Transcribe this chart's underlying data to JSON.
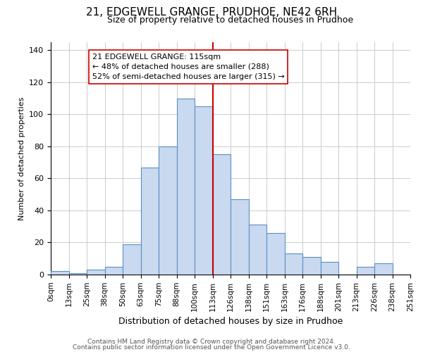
{
  "title": "21, EDGEWELL GRANGE, PRUDHOE, NE42 6RH",
  "subtitle": "Size of property relative to detached houses in Prudhoe",
  "xlabel": "Distribution of detached houses by size in Prudhoe",
  "ylabel": "Number of detached properties",
  "bin_labels": [
    "0sqm",
    "13sqm",
    "25sqm",
    "38sqm",
    "50sqm",
    "63sqm",
    "75sqm",
    "88sqm",
    "100sqm",
    "113sqm",
    "126sqm",
    "138sqm",
    "151sqm",
    "163sqm",
    "176sqm",
    "188sqm",
    "201sqm",
    "213sqm",
    "226sqm",
    "238sqm",
    "251sqm"
  ],
  "bar_heights": [
    2,
    1,
    3,
    5,
    19,
    67,
    80,
    110,
    105,
    75,
    47,
    31,
    26,
    13,
    11,
    8,
    0,
    5,
    7,
    0
  ],
  "bar_color": "#c8d9f0",
  "bar_edge_color": "#5b8ec4",
  "pct_smaller": 48,
  "n_smaller": 288,
  "pct_larger": 52,
  "n_larger": 315,
  "vline_color": "#cc0000",
  "vline_x": 9,
  "ylim": [
    0,
    145
  ],
  "yticks": [
    0,
    20,
    40,
    60,
    80,
    100,
    120,
    140
  ],
  "footer1": "Contains HM Land Registry data © Crown copyright and database right 2024.",
  "footer2": "Contains public sector information licensed under the Open Government Licence v3.0.",
  "bg_color": "#ffffff",
  "grid_color": "#cccccc",
  "title_fontsize": 11,
  "subtitle_fontsize": 9,
  "ylabel_fontsize": 8,
  "xlabel_fontsize": 9,
  "ytick_fontsize": 8,
  "xtick_fontsize": 7.5,
  "annotation_fontsize": 8,
  "footer_fontsize": 6.5
}
